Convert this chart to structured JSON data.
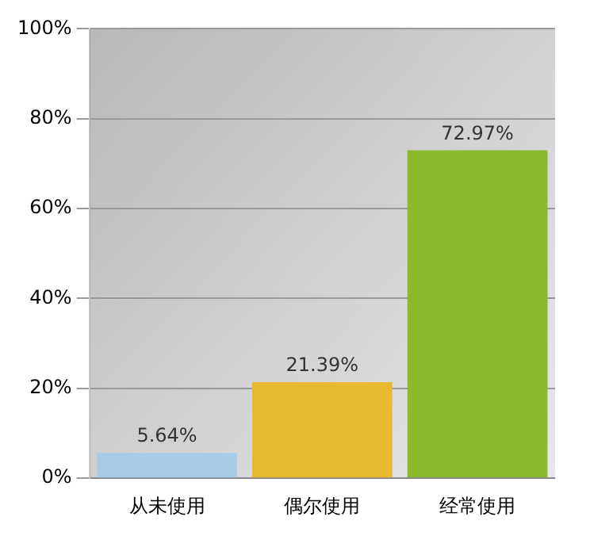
{
  "chart_data": {
    "type": "bar",
    "categories": [
      "从未使用",
      "偶尔使用",
      "经常使用"
    ],
    "values": [
      5.64,
      21.39,
      72.97
    ],
    "colors": [
      "#a8cce8",
      "#e8b830",
      "#8cb830"
    ],
    "value_labels": [
      "5.64%",
      "21.39%",
      "72.97%"
    ],
    "ylim": [
      0,
      100
    ],
    "yticks": [
      {
        "value": 0,
        "label": "0%"
      },
      {
        "value": 20,
        "label": "20%"
      },
      {
        "value": 40,
        "label": "40%"
      },
      {
        "value": 60,
        "label": "60%"
      },
      {
        "value": 80,
        "label": "80%"
      },
      {
        "value": 100,
        "label": "100%"
      }
    ],
    "grid": "y",
    "legend": false
  }
}
